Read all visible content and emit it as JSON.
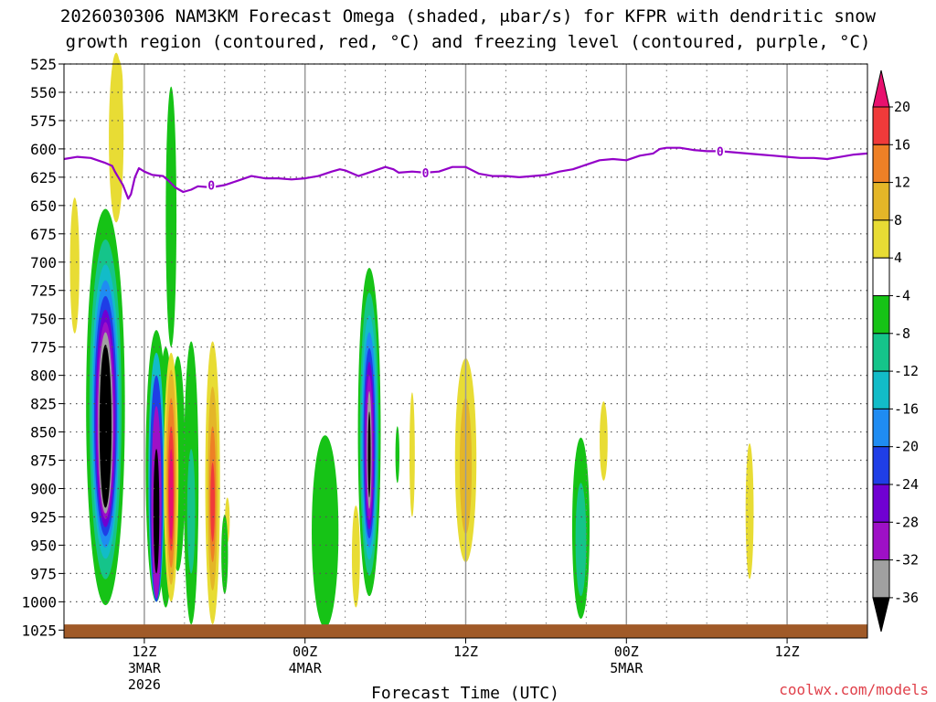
{
  "chart_data": {
    "type": "heatmap",
    "title_line1": "2026030306 NAM3KM Forecast Omega (shaded, μbar/s) for KFPR with dendritic snow",
    "title_line2": "growth region (contoured, red, °C) and freezing level (contoured, purple, °C)",
    "xlabel": "Forecast Time (UTC)",
    "credit": "coolwx.com/models",
    "y_axis": {
      "ticks": [
        525,
        550,
        575,
        600,
        625,
        650,
        675,
        700,
        725,
        750,
        775,
        800,
        825,
        850,
        875,
        900,
        925,
        950,
        975,
        1000,
        1025
      ],
      "range": [
        525,
        1032
      ],
      "unit": "hPa"
    },
    "x_axis": {
      "range_hours": [
        0,
        60
      ],
      "ticks": [
        {
          "hour": 6,
          "label": "12Z",
          "sub1": "3MAR",
          "sub2": "2026"
        },
        {
          "hour": 18,
          "label": "00Z",
          "sub1": "4MAR",
          "sub2": ""
        },
        {
          "hour": 30,
          "label": "12Z",
          "sub1": "",
          "sub2": ""
        },
        {
          "hour": 42,
          "label": "00Z",
          "sub1": "5MAR",
          "sub2": ""
        },
        {
          "hour": 54,
          "label": "12Z",
          "sub1": "",
          "sub2": ""
        }
      ],
      "minor_grid_hours": [
        9,
        12,
        15,
        21,
        24,
        27,
        33,
        36,
        39,
        45,
        48,
        51,
        57
      ]
    },
    "colorbar": {
      "labels": [
        "20",
        "16",
        "12",
        "8",
        "4",
        "-4",
        "-8",
        "-12",
        "-16",
        "-20",
        "-24",
        "-28",
        "-32",
        "-36"
      ],
      "colors": [
        "#e8106e",
        "#f03a3a",
        "#ee8026",
        "#e4b628",
        "#e8dc34",
        "#ffffff",
        "#16c316",
        "#15c48a",
        "#12bcc8",
        "#1f8cf2",
        "#1f3ee6",
        "#7000d2",
        "#9e10c6",
        "#a0a0a0",
        "#000000"
      ]
    },
    "freezing_level": {
      "label": "0",
      "color": "#9300c8",
      "points": [
        [
          0,
          609
        ],
        [
          1,
          607
        ],
        [
          2,
          608
        ],
        [
          3,
          612
        ],
        [
          3.6,
          615
        ],
        [
          3.8,
          620
        ],
        [
          4.4,
          632
        ],
        [
          4.8,
          644
        ],
        [
          5.0,
          640
        ],
        [
          5.3,
          625
        ],
        [
          5.6,
          617
        ],
        [
          6.0,
          620
        ],
        [
          6.6,
          623
        ],
        [
          7.4,
          624
        ],
        [
          7.8,
          628
        ],
        [
          8.3,
          634
        ],
        [
          8.9,
          638
        ],
        [
          9.5,
          636
        ],
        [
          10,
          633
        ],
        [
          11,
          634
        ],
        [
          12,
          632
        ],
        [
          13,
          628
        ],
        [
          14,
          624
        ],
        [
          15,
          626
        ],
        [
          16,
          626
        ],
        [
          17,
          627
        ],
        [
          18,
          626
        ],
        [
          19,
          624
        ],
        [
          20,
          620
        ],
        [
          20.6,
          618
        ],
        [
          21,
          619
        ],
        [
          22,
          624
        ],
        [
          23,
          620
        ],
        [
          24,
          616
        ],
        [
          24.6,
          618
        ],
        [
          25,
          621
        ],
        [
          26,
          620
        ],
        [
          27,
          621
        ],
        [
          28,
          620
        ],
        [
          29,
          616
        ],
        [
          30,
          616
        ],
        [
          31,
          622
        ],
        [
          32,
          624
        ],
        [
          33,
          624
        ],
        [
          34,
          625
        ],
        [
          35,
          624
        ],
        [
          36,
          623
        ],
        [
          37,
          620
        ],
        [
          38,
          618
        ],
        [
          39,
          614
        ],
        [
          40,
          610
        ],
        [
          41,
          609
        ],
        [
          42,
          610
        ],
        [
          43,
          606
        ],
        [
          44,
          604
        ],
        [
          44.5,
          600
        ],
        [
          45,
          599
        ],
        [
          46,
          599
        ],
        [
          47,
          601
        ],
        [
          48,
          602
        ],
        [
          49,
          602
        ],
        [
          50,
          603
        ],
        [
          51,
          604
        ],
        [
          52,
          605
        ],
        [
          53,
          606
        ],
        [
          54,
          607
        ],
        [
          55,
          608
        ],
        [
          56,
          608
        ],
        [
          57,
          609
        ],
        [
          58,
          607
        ],
        [
          59,
          605
        ],
        [
          60,
          604
        ]
      ],
      "contour_labels": [
        [
          11,
          632
        ],
        [
          27,
          621
        ],
        [
          49,
          602
        ]
      ]
    },
    "omega_areas": [
      {
        "t": 0.8,
        "p": 703,
        "dt": 0.35,
        "dp": 60,
        "value": 5
      },
      {
        "t": 3.9,
        "p": 590,
        "dt": 0.55,
        "dp": 75,
        "value": 5
      },
      {
        "t": 4.0,
        "p": 545,
        "dt": 0.4,
        "dp": 25,
        "value": 7
      },
      {
        "t": 3.1,
        "p": 828,
        "dt": 1.45,
        "dp": 175,
        "value": -6
      },
      {
        "t": 3.1,
        "p": 830,
        "dt": 1.2,
        "dp": 150,
        "value": -10
      },
      {
        "t": 3.1,
        "p": 832,
        "dt": 1.05,
        "dp": 130,
        "value": -14
      },
      {
        "t": 3.1,
        "p": 834,
        "dt": 0.95,
        "dp": 118,
        "value": -18
      },
      {
        "t": 3.1,
        "p": 836,
        "dt": 0.85,
        "dp": 106,
        "value": -22
      },
      {
        "t": 3.1,
        "p": 838,
        "dt": 0.75,
        "dp": 96,
        "value": -26
      },
      {
        "t": 3.1,
        "p": 840,
        "dt": 0.65,
        "dp": 87,
        "value": -30
      },
      {
        "t": 3.1,
        "p": 842,
        "dt": 0.55,
        "dp": 80,
        "value": -34
      },
      {
        "t": 3.1,
        "p": 845,
        "dt": 0.45,
        "dp": 72,
        "value": -40
      },
      {
        "t": 8.0,
        "p": 660,
        "dt": 0.4,
        "dp": 115,
        "value": -6
      },
      {
        "t": 7.6,
        "p": 890,
        "dt": 0.6,
        "dp": 115,
        "value": -6
      },
      {
        "t": 8.5,
        "p": 878,
        "dt": 0.55,
        "dp": 95,
        "value": -6
      },
      {
        "t": 6.9,
        "p": 880,
        "dt": 0.8,
        "dp": 120,
        "value": -6
      },
      {
        "t": 6.9,
        "p": 890,
        "dt": 0.6,
        "dp": 110,
        "value": -14
      },
      {
        "t": 6.9,
        "p": 900,
        "dt": 0.5,
        "dp": 100,
        "value": -22
      },
      {
        "t": 6.9,
        "p": 912,
        "dt": 0.38,
        "dp": 85,
        "value": -30
      },
      {
        "t": 6.9,
        "p": 920,
        "dt": 0.22,
        "dp": 55,
        "value": -40
      },
      {
        "t": 8.0,
        "p": 890,
        "dt": 0.55,
        "dp": 110,
        "value": 5
      },
      {
        "t": 8.0,
        "p": 890,
        "dt": 0.4,
        "dp": 95,
        "value": 9
      },
      {
        "t": 8.0,
        "p": 895,
        "dt": 0.3,
        "dp": 75,
        "value": 13
      },
      {
        "t": 8.0,
        "p": 900,
        "dt": 0.22,
        "dp": 55,
        "value": 17
      },
      {
        "t": 8.0,
        "p": 905,
        "dt": 0.15,
        "dp": 40,
        "value": 22
      },
      {
        "t": 9.5,
        "p": 895,
        "dt": 0.55,
        "dp": 125,
        "value": -6
      },
      {
        "t": 9.5,
        "p": 920,
        "dt": 0.3,
        "dp": 55,
        "value": -10
      },
      {
        "t": 11.1,
        "p": 895,
        "dt": 0.55,
        "dp": 125,
        "value": 5
      },
      {
        "t": 11.1,
        "p": 900,
        "dt": 0.38,
        "dp": 90,
        "value": 9
      },
      {
        "t": 11.1,
        "p": 905,
        "dt": 0.25,
        "dp": 60,
        "value": 13
      },
      {
        "t": 11.1,
        "p": 912,
        "dt": 0.16,
        "dp": 35,
        "value": 17
      },
      {
        "t": 12.2,
        "p": 928,
        "dt": 0.18,
        "dp": 20,
        "value": 5
      },
      {
        "t": 12.0,
        "p": 958,
        "dt": 0.25,
        "dp": 35,
        "value": -6
      },
      {
        "t": 19.5,
        "p": 938,
        "dt": 1.0,
        "dp": 85,
        "value": -6
      },
      {
        "t": 21.8,
        "p": 960,
        "dt": 0.3,
        "dp": 45,
        "value": 5
      },
      {
        "t": 22.8,
        "p": 850,
        "dt": 0.85,
        "dp": 145,
        "value": -6
      },
      {
        "t": 22.8,
        "p": 852,
        "dt": 0.7,
        "dp": 125,
        "value": -10
      },
      {
        "t": 22.8,
        "p": 855,
        "dt": 0.6,
        "dp": 108,
        "value": -14
      },
      {
        "t": 22.8,
        "p": 857,
        "dt": 0.52,
        "dp": 95,
        "value": -18
      },
      {
        "t": 22.8,
        "p": 860,
        "dt": 0.44,
        "dp": 84,
        "value": -22
      },
      {
        "t": 22.8,
        "p": 862,
        "dt": 0.36,
        "dp": 74,
        "value": -26
      },
      {
        "t": 22.8,
        "p": 864,
        "dt": 0.28,
        "dp": 64,
        "value": -30
      },
      {
        "t": 22.8,
        "p": 866,
        "dt": 0.18,
        "dp": 52,
        "value": -34
      },
      {
        "t": 22.8,
        "p": 870,
        "dt": 0.1,
        "dp": 38,
        "value": -40
      },
      {
        "t": 24.9,
        "p": 870,
        "dt": 0.15,
        "dp": 25,
        "value": -6
      },
      {
        "t": 26.0,
        "p": 870,
        "dt": 0.2,
        "dp": 55,
        "value": 5
      },
      {
        "t": 30.0,
        "p": 875,
        "dt": 0.8,
        "dp": 90,
        "value": 5
      },
      {
        "t": 30.0,
        "p": 880,
        "dt": 0.45,
        "dp": 60,
        "value": 9
      },
      {
        "t": 38.6,
        "p": 935,
        "dt": 0.65,
        "dp": 80,
        "value": -6
      },
      {
        "t": 38.6,
        "p": 945,
        "dt": 0.4,
        "dp": 50,
        "value": -10
      },
      {
        "t": 40.3,
        "p": 858,
        "dt": 0.3,
        "dp": 35,
        "value": 5
      },
      {
        "t": 51.2,
        "p": 920,
        "dt": 0.3,
        "dp": 60,
        "value": 5
      }
    ],
    "ground": {
      "color": "#a05a28",
      "top_pressure": 1020
    }
  }
}
